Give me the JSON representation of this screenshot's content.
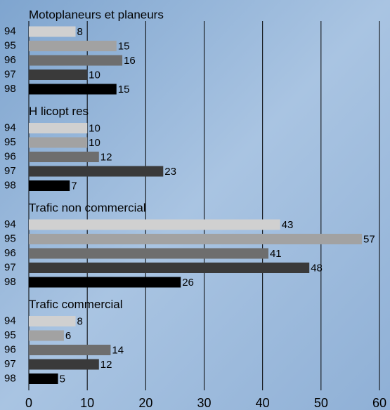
{
  "chart_data": {
    "type": "bar",
    "orientation": "horizontal",
    "groups": [
      {
        "title": "Motoplaneurs et planeurs",
        "categories": [
          "94",
          "95",
          "96",
          "97",
          "98"
        ],
        "values": [
          8,
          15,
          16,
          10,
          15
        ]
      },
      {
        "title": "H licopt res",
        "categories": [
          "94",
          "95",
          "96",
          "97",
          "98"
        ],
        "values": [
          10,
          10,
          12,
          23,
          7
        ]
      },
      {
        "title": "Trafic non commercial",
        "categories": [
          "94",
          "95",
          "96",
          "97",
          "98"
        ],
        "values": [
          43,
          57,
          41,
          48,
          26
        ]
      },
      {
        "title": "Trafic commercial",
        "categories": [
          "94",
          "95",
          "96",
          "97",
          "98"
        ],
        "values": [
          8,
          6,
          14,
          12,
          5
        ]
      }
    ],
    "colors": [
      "#d0d0d0",
      "#a2a2a2",
      "#6e6e6e",
      "#3a3a3a",
      "#000000"
    ],
    "xlim": [
      0,
      60
    ],
    "xticks": [
      0,
      10,
      20,
      30,
      40,
      50,
      60
    ],
    "grid": true
  }
}
